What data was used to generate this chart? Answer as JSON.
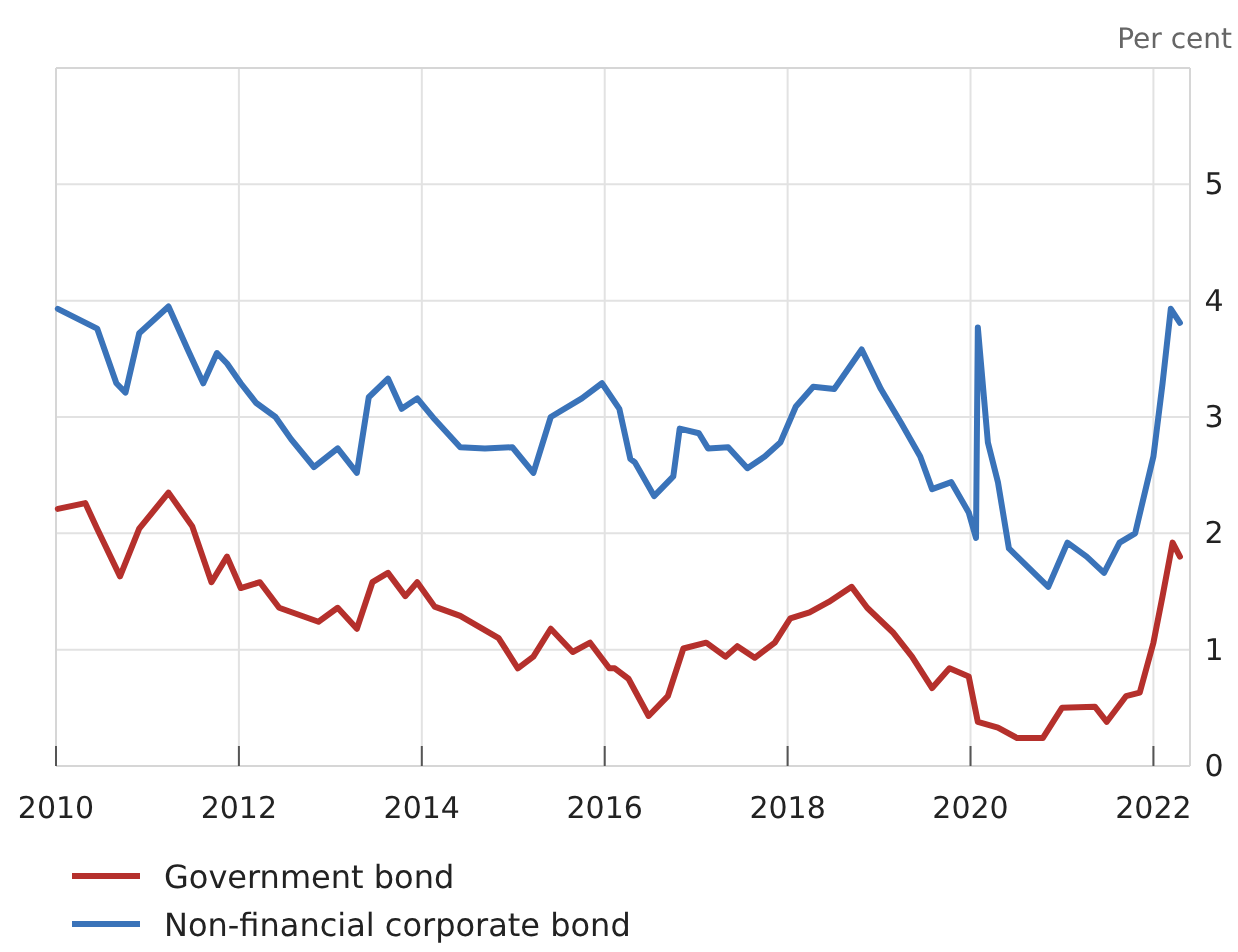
{
  "chart_data": {
    "type": "line",
    "ylabel": "Per cent",
    "xlim": [
      2010,
      2022.4
    ],
    "xticks": [
      2010,
      2012,
      2014,
      2016,
      2018,
      2020,
      2022
    ],
    "ylim": [
      0,
      6
    ],
    "yticks": [
      0,
      1,
      2,
      3,
      4,
      5
    ],
    "grid": true,
    "legend": "bottom left",
    "line_style": "solid",
    "series": [
      {
        "name": "Government bond",
        "color": "#b5302c",
        "x": [
          2010.02,
          2010.32,
          2010.45,
          2010.7,
          2010.91,
          2011.23,
          2011.49,
          2011.7,
          2011.87,
          2012.02,
          2012.23,
          2012.44,
          2012.87,
          2013.08,
          2013.29,
          2013.46,
          2013.63,
          2013.82,
          2013.95,
          2014.14,
          2014.42,
          2014.84,
          2015.05,
          2015.22,
          2015.41,
          2015.65,
          2015.84,
          2016.05,
          2016.11,
          2016.26,
          2016.48,
          2016.69,
          2016.86,
          2017.11,
          2017.32,
          2017.45,
          2017.64,
          2017.86,
          2018.03,
          2018.24,
          2018.45,
          2018.7,
          2018.87,
          2019.15,
          2019.36,
          2019.58,
          2019.77,
          2019.98,
          2020.08,
          2020.3,
          2020.51,
          2020.79,
          2021.0,
          2021.36,
          2021.49,
          2021.7,
          2021.85,
          2022.0,
          2022.1,
          2022.21,
          2022.29
        ],
        "values": [
          2.21,
          2.26,
          2.04,
          1.63,
          2.04,
          2.35,
          2.06,
          1.58,
          1.8,
          1.53,
          1.58,
          1.36,
          1.24,
          1.36,
          1.18,
          1.58,
          1.66,
          1.46,
          1.58,
          1.37,
          1.29,
          1.1,
          0.84,
          0.94,
          1.18,
          0.98,
          1.06,
          0.84,
          0.84,
          0.75,
          0.43,
          0.6,
          1.01,
          1.06,
          0.94,
          1.03,
          0.93,
          1.06,
          1.27,
          1.32,
          1.41,
          1.54,
          1.36,
          1.15,
          0.94,
          0.67,
          0.84,
          0.77,
          0.38,
          0.33,
          0.24,
          0.24,
          0.5,
          0.51,
          0.38,
          0.6,
          0.63,
          1.06,
          1.46,
          1.92,
          1.8
        ]
      },
      {
        "name": "Non-financial corporate bond",
        "color": "#3a73b9",
        "x": [
          2010.02,
          2010.45,
          2010.66,
          2010.76,
          2010.91,
          2011.23,
          2011.44,
          2011.61,
          2011.76,
          2011.87,
          2012.02,
          2012.19,
          2012.4,
          2012.57,
          2012.82,
          2013.08,
          2013.29,
          2013.42,
          2013.63,
          2013.78,
          2013.95,
          2014.14,
          2014.42,
          2014.69,
          2014.99,
          2015.22,
          2015.41,
          2015.75,
          2015.97,
          2016.16,
          2016.28,
          2016.33,
          2016.54,
          2016.75,
          2016.82,
          2017.03,
          2017.13,
          2017.35,
          2017.56,
          2017.75,
          2017.92,
          2018.09,
          2018.28,
          2018.51,
          2018.81,
          2019.02,
          2019.24,
          2019.45,
          2019.58,
          2019.79,
          2019.98,
          2020.06,
          2020.08,
          2020.19,
          2020.3,
          2020.42,
          2020.64,
          2020.85,
          2021.06,
          2021.27,
          2021.46,
          2021.63,
          2021.8,
          2022.0,
          2022.1,
          2022.19,
          2022.29
        ],
        "values": [
          3.93,
          3.76,
          3.29,
          3.21,
          3.72,
          3.95,
          3.58,
          3.29,
          3.55,
          3.46,
          3.29,
          3.12,
          3.0,
          2.81,
          2.57,
          2.73,
          2.52,
          3.17,
          3.33,
          3.07,
          3.16,
          2.98,
          2.74,
          2.73,
          2.74,
          2.52,
          3.0,
          3.16,
          3.29,
          3.07,
          2.64,
          2.61,
          2.32,
          2.49,
          2.9,
          2.86,
          2.73,
          2.74,
          2.56,
          2.66,
          2.78,
          3.09,
          3.26,
          3.24,
          3.58,
          3.24,
          2.95,
          2.66,
          2.38,
          2.44,
          2.18,
          1.96,
          3.77,
          2.78,
          2.44,
          1.87,
          1.7,
          1.54,
          1.92,
          1.8,
          1.66,
          1.92,
          2.0,
          2.66,
          3.29,
          3.93,
          3.81
        ]
      }
    ]
  }
}
